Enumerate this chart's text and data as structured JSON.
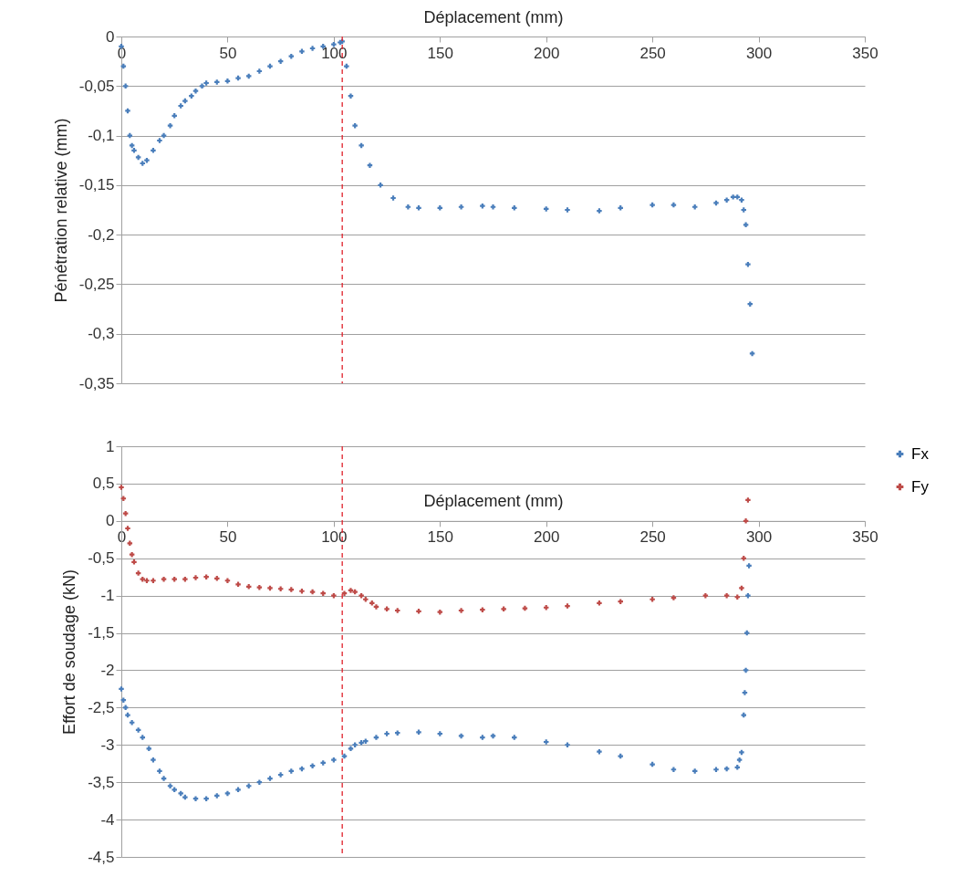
{
  "chart_data": [
    {
      "type": "scatter",
      "xlabel": "Déplacement (mm)",
      "ylabel": "Pénétration relative (mm)",
      "xlim": [
        0,
        350
      ],
      "xticks": [
        0,
        50,
        100,
        150,
        200,
        250,
        300,
        350
      ],
      "ylim": [
        -0.35,
        0
      ],
      "yticks": [
        {
          "value": 0,
          "label": "0"
        },
        {
          "value": -0.05,
          "label": "-0,05"
        },
        {
          "value": -0.1,
          "label": "-0,1"
        },
        {
          "value": -0.15,
          "label": "-0,15"
        },
        {
          "value": -0.2,
          "label": "-0,2"
        },
        {
          "value": -0.25,
          "label": "-0,25"
        },
        {
          "value": -0.3,
          "label": "-0,3"
        },
        {
          "value": -0.35,
          "label": "-0,35"
        }
      ],
      "grid": "y",
      "marker": "cross",
      "x": [
        0,
        1,
        2,
        3,
        4,
        5,
        6,
        8,
        10,
        12,
        15,
        18,
        20,
        23,
        25,
        28,
        30,
        33,
        35,
        38,
        40,
        45,
        50,
        55,
        60,
        65,
        70,
        75,
        80,
        85,
        90,
        95,
        100,
        103,
        104,
        106,
        108,
        110,
        113,
        117,
        122,
        128,
        135,
        140,
        150,
        160,
        170,
        175,
        185,
        200,
        210,
        225,
        235,
        250,
        260,
        270,
        280,
        285,
        288,
        290,
        292,
        293,
        294,
        295,
        296,
        297
      ],
      "series": [
        {
          "color": "#4a7ebb",
          "values": [
            -0.01,
            -0.03,
            -0.05,
            -0.075,
            -0.1,
            -0.11,
            -0.115,
            -0.122,
            -0.128,
            -0.125,
            -0.115,
            -0.105,
            -0.1,
            -0.09,
            -0.08,
            -0.07,
            -0.065,
            -0.06,
            -0.055,
            -0.05,
            -0.047,
            -0.046,
            -0.045,
            -0.042,
            -0.04,
            -0.035,
            -0.03,
            -0.025,
            -0.02,
            -0.015,
            -0.012,
            -0.01,
            -0.008,
            -0.006,
            -0.005,
            -0.03,
            -0.06,
            -0.09,
            -0.11,
            -0.13,
            -0.15,
            -0.163,
            -0.172,
            -0.173,
            -0.173,
            -0.172,
            -0.171,
            -0.172,
            -0.173,
            -0.174,
            -0.175,
            -0.176,
            -0.173,
            -0.17,
            -0.17,
            -0.172,
            -0.168,
            -0.165,
            -0.162,
            -0.162,
            -0.165,
            -0.175,
            -0.19,
            -0.23,
            -0.27,
            -0.32
          ]
        }
      ],
      "ref_lines": [
        {
          "axis": "x",
          "value": 104,
          "color": "#e0202a",
          "line_style": "dashed"
        }
      ]
    },
    {
      "type": "scatter",
      "xlabel": "Déplacement (mm)",
      "ylabel": "Effort de soudage (kN)",
      "xlim": [
        0,
        350
      ],
      "xticks": [
        0,
        50,
        100,
        150,
        200,
        250,
        300,
        350
      ],
      "ylim": [
        -4.5,
        1
      ],
      "yticks": [
        1,
        {
          "value": 0.5,
          "label": "0,5"
        },
        0,
        {
          "value": -0.5,
          "label": "-0,5"
        },
        -1,
        {
          "value": -1.5,
          "label": "-1,5"
        },
        -2,
        {
          "value": -2.5,
          "label": "-2,5"
        },
        -3,
        {
          "value": -3.5,
          "label": "-3,5"
        },
        -4,
        {
          "value": -4.5,
          "label": "-4,5"
        }
      ],
      "grid": "y",
      "marker": "cross",
      "legend": "right",
      "series": [
        {
          "name": "Fx",
          "color": "#4a7ebb",
          "x": [
            0,
            1,
            2,
            3,
            5,
            8,
            10,
            13,
            15,
            18,
            20,
            23,
            25,
            28,
            30,
            35,
            40,
            45,
            50,
            55,
            60,
            65,
            70,
            75,
            80,
            85,
            90,
            95,
            100,
            105,
            108,
            110,
            113,
            115,
            120,
            125,
            130,
            140,
            150,
            160,
            170,
            175,
            185,
            200,
            210,
            225,
            235,
            250,
            260,
            270,
            280,
            285,
            290,
            291,
            292,
            293,
            293.5,
            294,
            294.5,
            295,
            295.5
          ],
          "values": [
            -2.25,
            -2.4,
            -2.5,
            -2.6,
            -2.7,
            -2.8,
            -2.9,
            -3.05,
            -3.2,
            -3.35,
            -3.45,
            -3.55,
            -3.6,
            -3.65,
            -3.7,
            -3.72,
            -3.72,
            -3.68,
            -3.65,
            -3.6,
            -3.55,
            -3.5,
            -3.45,
            -3.4,
            -3.35,
            -3.32,
            -3.28,
            -3.24,
            -3.2,
            -3.15,
            -3.05,
            -3.0,
            -2.97,
            -2.95,
            -2.9,
            -2.85,
            -2.84,
            -2.83,
            -2.85,
            -2.88,
            -2.9,
            -2.88,
            -2.9,
            -2.96,
            -3.0,
            -3.09,
            -3.15,
            -3.26,
            -3.33,
            -3.35,
            -3.33,
            -3.32,
            -3.3,
            -3.2,
            -3.1,
            -2.6,
            -2.3,
            -2.0,
            -1.5,
            -1.0,
            -0.6
          ]
        },
        {
          "name": "Fy",
          "color": "#be4b48",
          "x": [
            0,
            1,
            2,
            3,
            4,
            5,
            6,
            8,
            10,
            12,
            15,
            20,
            25,
            30,
            35,
            40,
            45,
            50,
            55,
            60,
            65,
            70,
            75,
            80,
            85,
            90,
            95,
            100,
            105,
            108,
            110,
            113,
            115,
            118,
            120,
            125,
            130,
            140,
            150,
            160,
            170,
            180,
            190,
            200,
            210,
            225,
            235,
            250,
            260,
            275,
            285,
            290,
            292,
            293,
            294,
            295
          ],
          "values": [
            0.45,
            0.3,
            0.1,
            -0.1,
            -0.3,
            -0.45,
            -0.55,
            -0.7,
            -0.78,
            -0.8,
            -0.8,
            -0.78,
            -0.78,
            -0.78,
            -0.76,
            -0.75,
            -0.77,
            -0.8,
            -0.85,
            -0.88,
            -0.89,
            -0.9,
            -0.91,
            -0.92,
            -0.94,
            -0.95,
            -0.97,
            -1.0,
            -0.97,
            -0.93,
            -0.95,
            -1.0,
            -1.05,
            -1.1,
            -1.15,
            -1.18,
            -1.2,
            -1.21,
            -1.22,
            -1.2,
            -1.19,
            -1.18,
            -1.17,
            -1.16,
            -1.14,
            -1.1,
            -1.08,
            -1.05,
            -1.03,
            -1.0,
            -1.0,
            -1.02,
            -0.9,
            -0.5,
            0.0,
            0.28
          ]
        }
      ],
      "ref_lines": [
        {
          "axis": "x",
          "value": 104,
          "color": "#e0202a",
          "line_style": "dashed"
        }
      ]
    }
  ]
}
